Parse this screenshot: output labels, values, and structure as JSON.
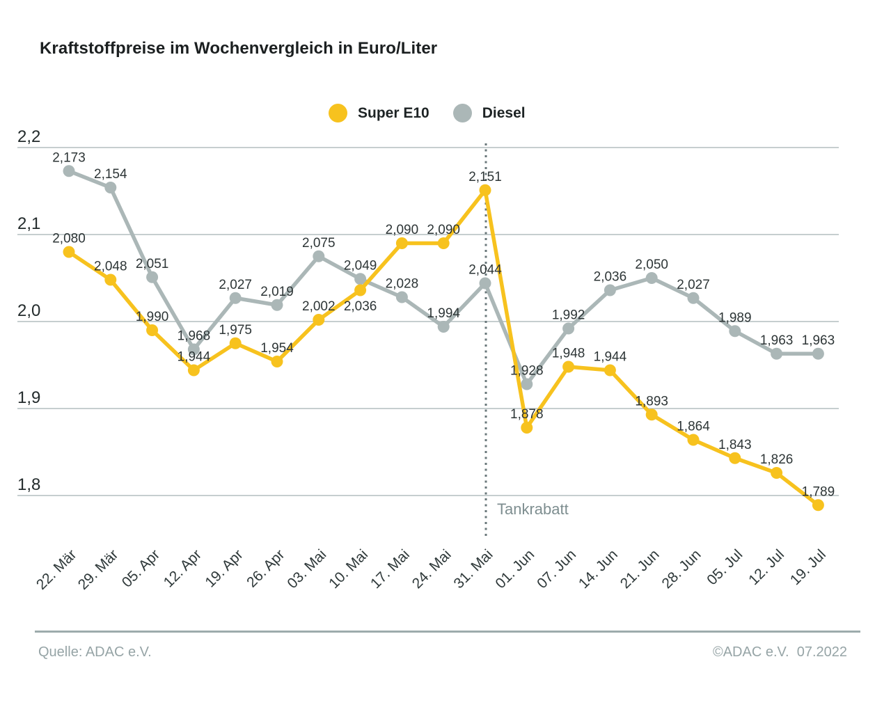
{
  "title": "Kraftstoffpreise im Wochenvergleich in Euro/Liter",
  "legend": [
    {
      "label": "Super E10",
      "color": "#F7C21E"
    },
    {
      "label": "Diesel",
      "color": "#ABB7B7"
    }
  ],
  "footer": {
    "source": "Quelle: ADAC e.V.",
    "copyright": "©ADAC e.V.  07.2022"
  },
  "chart_data": {
    "type": "line",
    "title": "Kraftstoffpreise im Wochenvergleich in Euro/Liter",
    "xlabel": "",
    "ylabel": "Euro/Liter",
    "categories": [
      "22. Mär",
      "29. Mär",
      "05. Apr",
      "12. Apr",
      "19. Apr",
      "26. Apr",
      "03. Mai",
      "10. Mai",
      "17. Mai",
      "24. Mai",
      "31. Mai",
      "01. Jun",
      "07. Jun",
      "14. Jun",
      "21. Jun",
      "28. Jun",
      "05. Jul",
      "12. Jul",
      "19. Jul"
    ],
    "series": [
      {
        "name": "Super E10",
        "color": "#F7C21E",
        "values": [
          2.08,
          2.048,
          1.99,
          1.944,
          1.975,
          1.954,
          2.002,
          2.036,
          2.09,
          2.09,
          2.151,
          1.878,
          1.948,
          1.944,
          1.893,
          1.864,
          1.843,
          1.826,
          1.789
        ]
      },
      {
        "name": "Diesel",
        "color": "#ABB7B7",
        "values": [
          2.173,
          2.154,
          2.051,
          1.968,
          2.027,
          2.019,
          2.075,
          2.049,
          2.028,
          1.994,
          2.044,
          1.928,
          1.992,
          2.036,
          2.05,
          2.027,
          1.989,
          1.963,
          1.963
        ]
      }
    ],
    "yticks": [
      2.2,
      2.1,
      2.0,
      1.9,
      1.8
    ],
    "ylim": [
      1.75,
      2.2
    ],
    "grid": true,
    "legend_position": "top",
    "decimal_separator": ",",
    "annotation": {
      "label": "Tankrabatt",
      "at_category": "31. Mai",
      "style": "dotted-vertical-line"
    },
    "label_adjustments": [
      {
        "series": "Super E10",
        "category": "10. Mai",
        "position": "below"
      }
    ]
  }
}
